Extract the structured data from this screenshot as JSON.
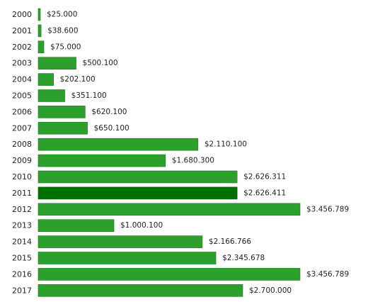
{
  "chart_data": {
    "type": "bar",
    "orientation": "horizontal",
    "categories": [
      "2000",
      "2001",
      "2002",
      "2003",
      "2004",
      "2005",
      "2006",
      "2007",
      "2008",
      "2009",
      "2010",
      "2011",
      "2012",
      "2013",
      "2014",
      "2015",
      "2016",
      "2017"
    ],
    "values": [
      25000,
      38600,
      75000,
      500100,
      202100,
      351100,
      620100,
      650100,
      2110100,
      1680300,
      2626311,
      2626411,
      3456789,
      1000100,
      2166766,
      2345678,
      3456789,
      2700000
    ],
    "value_labels": [
      "$25.000",
      "$38.600",
      "$75.000",
      "$500.100",
      "$202.100",
      "$351.100",
      "$620.100",
      "$650.100",
      "$2.110.100",
      "$1.680.300",
      "$2.626.311",
      "$2.626.411",
      "$3.456.789",
      "$1.000.100",
      "$2.166.766",
      "$2.345.678",
      "$3.456.789",
      "$2.700.000"
    ],
    "highlight_index": 11,
    "colors": {
      "bar": "#2ca02c",
      "bar_border": "#1f7a1f",
      "highlight": "#037003",
      "highlight_border": "#025402",
      "text": "#222222"
    },
    "title": "",
    "xlabel": "",
    "ylabel": "",
    "xlim": [
      0,
      3456789
    ],
    "grid": false,
    "legend": "none"
  }
}
